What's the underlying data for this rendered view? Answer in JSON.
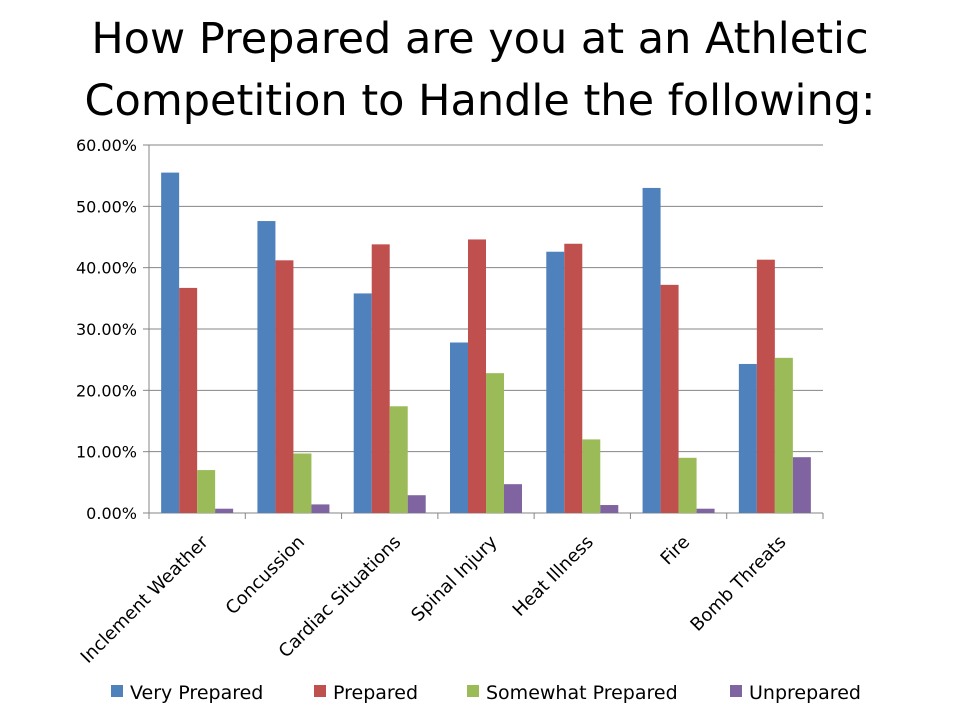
{
  "chart_data": {
    "type": "bar",
    "title_lines": [
      "How Prepared are you at an Athletic",
      "Competition to Handle the following:"
    ],
    "categories": [
      "Inclement Weather",
      "Concussion",
      "Cardiac Situations",
      "Spinal Injury",
      "Heat Illness",
      "Fire",
      "Bomb Threats"
    ],
    "series": [
      {
        "name": "Very Prepared",
        "color": "#4F81BD",
        "values": [
          55.5,
          47.6,
          35.8,
          27.8,
          42.6,
          53.0,
          24.3
        ]
      },
      {
        "name": "Prepared",
        "color": "#C0504D",
        "values": [
          36.7,
          41.2,
          43.8,
          44.6,
          43.9,
          37.2,
          41.3
        ]
      },
      {
        "name": "Somewhat Prepared",
        "color": "#9BBB59",
        "values": [
          7.0,
          9.7,
          17.4,
          22.8,
          12.0,
          9.0,
          25.3
        ]
      },
      {
        "name": "Unprepared",
        "color": "#8064A2",
        "values": [
          0.7,
          1.4,
          2.9,
          4.7,
          1.3,
          0.7,
          9.1
        ]
      }
    ],
    "y_ticks": [
      "0.00%",
      "10.00%",
      "20.00%",
      "30.00%",
      "40.00%",
      "50.00%",
      "60.00%"
    ],
    "ylim": [
      0,
      60
    ],
    "y_unit": "percent",
    "grid": true,
    "legend_position": "bottom"
  }
}
